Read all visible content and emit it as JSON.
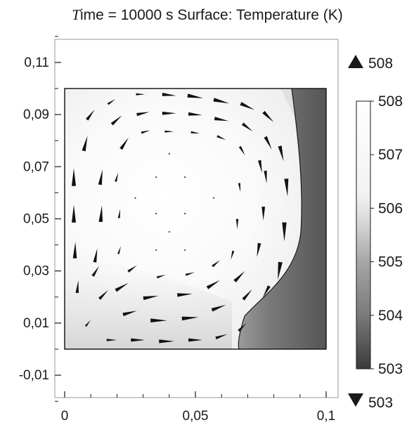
{
  "chart_data": {
    "type": "heatmap",
    "title_prefix": "T",
    "title": "ime = 10000 s Surface: Temperature (K)",
    "xlabel": "",
    "ylabel": "",
    "xlim": [
      -0.004,
      0.104
    ],
    "ylim": [
      -0.02,
      0.125
    ],
    "x_ticks": [
      "0",
      "0,05",
      "0,1"
    ],
    "x_tick_values": [
      0,
      0.05,
      0.1
    ],
    "y_ticks": [
      "0,11",
      "0,09",
      "0,07",
      "0,05",
      "0,03",
      "0,01",
      "-0,01"
    ],
    "y_tick_values": [
      0.11,
      0.09,
      0.07,
      0.05,
      0.03,
      0.01,
      -0.01
    ],
    "domain": {
      "x": [
        0,
        0.1
      ],
      "y": [
        0,
        0.1
      ]
    },
    "colorbar": {
      "max_marker": "508",
      "min_marker": "503",
      "ticks": [
        "508",
        "507",
        "506",
        "505",
        "504",
        "503"
      ],
      "tick_values": [
        508,
        507,
        506,
        505,
        504,
        503
      ],
      "range": [
        503,
        508
      ],
      "colormap": "grayscale",
      "color_high": "#ffffff",
      "color_low": "#3a3a3a"
    },
    "field": {
      "hot_core_temperature": 507.9,
      "right_wall_temperature": 503.5,
      "lower_region_temperature": 505.6,
      "isotherm_temperature": 505
    },
    "vectors": [
      {
        "x": 0.029,
        "y": 0.0978,
        "u": 0.35,
        "v": 0.0
      },
      {
        "x": 0.04,
        "y": 0.0975,
        "u": 0.55,
        "v": -0.05
      },
      {
        "x": 0.05,
        "y": 0.0968,
        "u": 0.62,
        "v": -0.1
      },
      {
        "x": 0.06,
        "y": 0.095,
        "u": 0.62,
        "v": -0.15
      },
      {
        "x": 0.07,
        "y": 0.093,
        "u": 0.55,
        "v": -0.25
      },
      {
        "x": 0.078,
        "y": 0.089,
        "u": 0.4,
        "v": -0.4
      },
      {
        "x": 0.018,
        "y": 0.095,
        "u": 0.3,
        "v": 0.2
      },
      {
        "x": 0.01,
        "y": 0.09,
        "u": 0.3,
        "v": 0.4
      },
      {
        "x": 0.02,
        "y": 0.088,
        "u": 0.4,
        "v": 0.35
      },
      {
        "x": 0.03,
        "y": 0.0905,
        "u": 0.5,
        "v": 0.1
      },
      {
        "x": 0.04,
        "y": 0.0905,
        "u": 0.55,
        "v": 0.0
      },
      {
        "x": 0.05,
        "y": 0.09,
        "u": 0.55,
        "v": -0.05
      },
      {
        "x": 0.06,
        "y": 0.088,
        "u": 0.55,
        "v": -0.1
      },
      {
        "x": 0.07,
        "y": 0.085,
        "u": 0.4,
        "v": -0.3
      },
      {
        "x": 0.078,
        "y": 0.079,
        "u": 0.25,
        "v": -0.5
      },
      {
        "x": 0.023,
        "y": 0.079,
        "u": 0.3,
        "v": 0.45
      },
      {
        "x": 0.031,
        "y": 0.0835,
        "u": 0.35,
        "v": 0.1
      },
      {
        "x": 0.04,
        "y": 0.0835,
        "u": 0.35,
        "v": 0.0
      },
      {
        "x": 0.05,
        "y": 0.083,
        "u": 0.35,
        "v": -0.05
      },
      {
        "x": 0.06,
        "y": 0.081,
        "u": 0.35,
        "v": -0.15
      },
      {
        "x": 0.068,
        "y": 0.076,
        "u": 0.2,
        "v": -0.35
      },
      {
        "x": 0.075,
        "y": 0.07,
        "u": 0.1,
        "v": -0.5
      },
      {
        "x": 0.008,
        "y": 0.079,
        "u": 0.15,
        "v": 0.6
      },
      {
        "x": 0.0035,
        "y": 0.066,
        "u": 0.0,
        "v": 0.7
      },
      {
        "x": 0.0035,
        "y": 0.052,
        "u": 0.0,
        "v": 0.7
      },
      {
        "x": 0.004,
        "y": 0.038,
        "u": 0.02,
        "v": 0.65
      },
      {
        "x": 0.005,
        "y": 0.024,
        "u": 0.05,
        "v": 0.5
      },
      {
        "x": 0.014,
        "y": 0.066,
        "u": 0.1,
        "v": 0.6
      },
      {
        "x": 0.014,
        "y": 0.052,
        "u": 0.05,
        "v": 0.65
      },
      {
        "x": 0.012,
        "y": 0.036,
        "u": 0.1,
        "v": 0.55
      },
      {
        "x": 0.02,
        "y": 0.066,
        "u": 0.1,
        "v": 0.35
      },
      {
        "x": 0.021,
        "y": 0.052,
        "u": 0.05,
        "v": 0.35
      },
      {
        "x": 0.021,
        "y": 0.038,
        "u": 0.1,
        "v": 0.3
      },
      {
        "x": 0.083,
        "y": 0.075,
        "u": 0.15,
        "v": -0.6
      },
      {
        "x": 0.085,
        "y": 0.062,
        "u": 0.05,
        "v": -0.7
      },
      {
        "x": 0.084,
        "y": 0.045,
        "u": 0.0,
        "v": -0.75
      },
      {
        "x": 0.082,
        "y": 0.03,
        "u": -0.1,
        "v": -0.7
      },
      {
        "x": 0.077,
        "y": 0.066,
        "u": 0.05,
        "v": -0.5
      },
      {
        "x": 0.076,
        "y": 0.052,
        "u": 0.0,
        "v": -0.55
      },
      {
        "x": 0.074,
        "y": 0.038,
        "u": -0.1,
        "v": -0.55
      },
      {
        "x": 0.067,
        "y": 0.062,
        "u": 0.05,
        "v": -0.35
      },
      {
        "x": 0.066,
        "y": 0.048,
        "u": 0.0,
        "v": -0.4
      },
      {
        "x": 0.064,
        "y": 0.036,
        "u": -0.1,
        "v": -0.35
      },
      {
        "x": 0.015,
        "y": 0.021,
        "u": 0.35,
        "v": 0.35
      },
      {
        "x": 0.025,
        "y": 0.014,
        "u": 0.55,
        "v": 0.15
      },
      {
        "x": 0.036,
        "y": 0.011,
        "u": 0.65,
        "v": 0.0
      },
      {
        "x": 0.048,
        "y": 0.012,
        "u": 0.65,
        "v": 0.05
      },
      {
        "x": 0.059,
        "y": 0.016,
        "u": 0.55,
        "v": 0.2
      },
      {
        "x": 0.07,
        "y": 0.021,
        "u": 0.35,
        "v": 0.4
      },
      {
        "x": 0.077,
        "y": 0.022,
        "u": -0.25,
        "v": -0.45
      },
      {
        "x": 0.012,
        "y": 0.03,
        "u": 0.25,
        "v": 0.4
      },
      {
        "x": 0.022,
        "y": 0.024,
        "u": 0.5,
        "v": 0.3
      },
      {
        "x": 0.033,
        "y": 0.02,
        "u": 0.6,
        "v": 0.1
      },
      {
        "x": 0.046,
        "y": 0.021,
        "u": 0.6,
        "v": 0.05
      },
      {
        "x": 0.057,
        "y": 0.025,
        "u": 0.5,
        "v": 0.3
      },
      {
        "x": 0.067,
        "y": 0.028,
        "u": 0.4,
        "v": 0.4
      },
      {
        "x": 0.026,
        "y": 0.031,
        "u": 0.35,
        "v": 0.25
      },
      {
        "x": 0.037,
        "y": 0.028,
        "u": 0.35,
        "v": 0.1
      },
      {
        "x": 0.048,
        "y": 0.029,
        "u": 0.35,
        "v": 0.1
      },
      {
        "x": 0.058,
        "y": 0.033,
        "u": 0.3,
        "v": 0.25
      },
      {
        "x": 0.018,
        "y": 0.0035,
        "u": 0.4,
        "v": 0.0
      },
      {
        "x": 0.028,
        "y": 0.0035,
        "u": 0.55,
        "v": 0.0
      },
      {
        "x": 0.039,
        "y": 0.003,
        "u": 0.6,
        "v": 0.0
      },
      {
        "x": 0.05,
        "y": 0.0035,
        "u": 0.55,
        "v": 0.0
      },
      {
        "x": 0.06,
        "y": 0.005,
        "u": 0.45,
        "v": 0.15
      },
      {
        "x": 0.068,
        "y": 0.0085,
        "u": 0.3,
        "v": 0.3
      },
      {
        "x": 0.009,
        "y": 0.01,
        "u": 0.2,
        "v": 0.25
      },
      {
        "x": 0.035,
        "y": 0.052,
        "u": 0.02,
        "v": 0.02
      },
      {
        "x": 0.046,
        "y": 0.052,
        "u": 0.02,
        "v": -0.02
      },
      {
        "x": 0.035,
        "y": 0.066,
        "u": 0.03,
        "v": 0.01
      },
      {
        "x": 0.046,
        "y": 0.066,
        "u": 0.03,
        "v": -0.01
      },
      {
        "x": 0.035,
        "y": 0.038,
        "u": 0.03,
        "v": 0.02
      },
      {
        "x": 0.046,
        "y": 0.038,
        "u": 0.03,
        "v": 0.0
      },
      {
        "x": 0.057,
        "y": 0.058,
        "u": 0.02,
        "v": -0.04
      },
      {
        "x": 0.027,
        "y": 0.058,
        "u": 0.01,
        "v": 0.04
      },
      {
        "x": 0.04,
        "y": 0.075,
        "u": 0.04,
        "v": 0.0
      },
      {
        "x": 0.04,
        "y": 0.045,
        "u": 0.03,
        "v": 0.0
      }
    ]
  }
}
